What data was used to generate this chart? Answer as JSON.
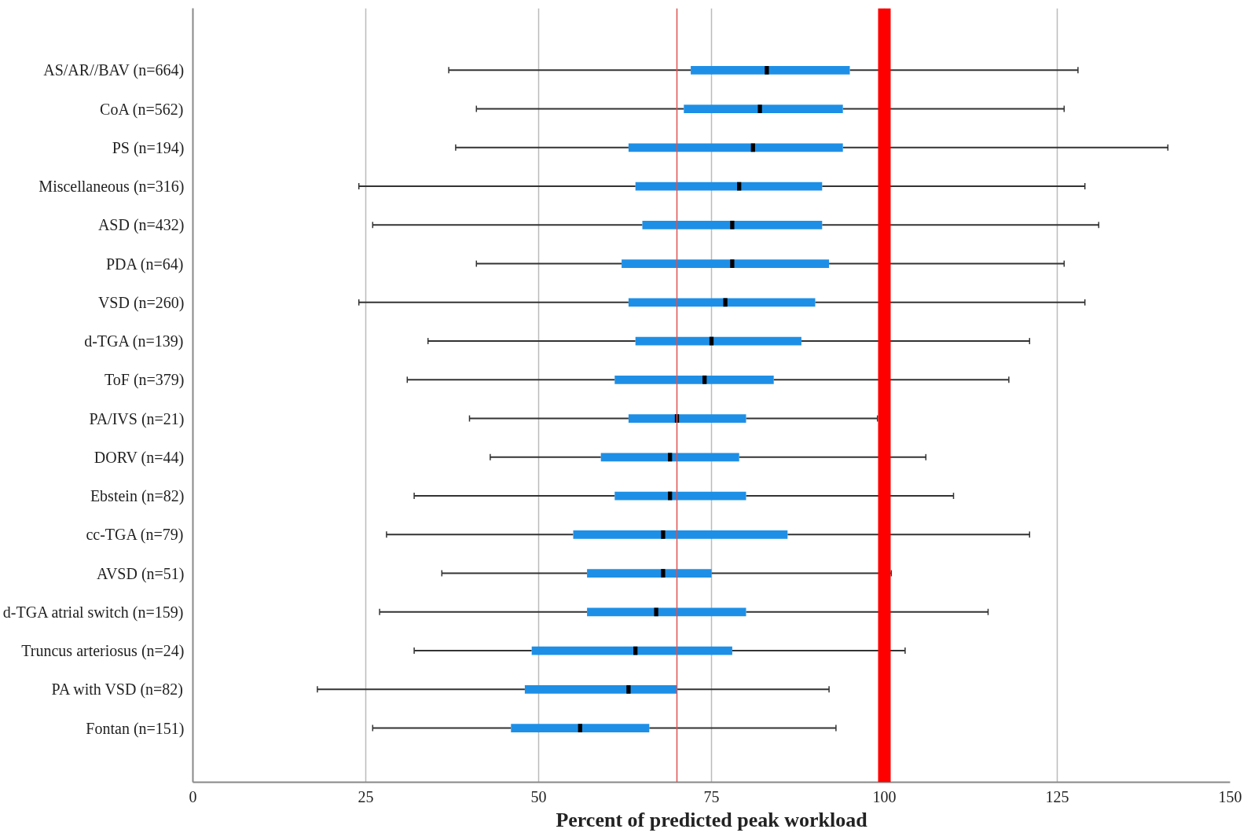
{
  "chart_data": {
    "type": "box",
    "orientation": "horizontal",
    "xlabel": "Percent of predicted peak workload",
    "categories": [
      "AS/AR//BAV (n=664)",
      "CoA (n=562)",
      "PS (n=194)",
      "Miscellaneous (n=316)",
      "ASD (n=432)",
      "PDA (n=64)",
      "VSD (n=260)",
      "d-TGA (n=139)",
      "ToF (n=379)",
      "PA/IVS (n=21)",
      "DORV (n=44)",
      "Ebstein (n=82)",
      "cc-TGA (n=79)",
      "AVSD (n=51)",
      "d-TGA atrial switch (n=159)",
      "Truncus arteriosus (n=24)",
      "PA with VSD (n=82)",
      "Fontan (n=151)"
    ],
    "series": [
      {
        "color": "#1e8fe6",
        "boxes": [
          {
            "low": 37,
            "q1": 72,
            "median": 83,
            "q3": 95,
            "high": 128
          },
          {
            "low": 41,
            "q1": 71,
            "median": 82,
            "q3": 94,
            "high": 126
          },
          {
            "low": 38,
            "q1": 63,
            "median": 81,
            "q3": 94,
            "high": 141
          },
          {
            "low": 24,
            "q1": 64,
            "median": 79,
            "q3": 91,
            "high": 129
          },
          {
            "low": 26,
            "q1": 65,
            "median": 78,
            "q3": 91,
            "high": 131
          },
          {
            "low": 41,
            "q1": 62,
            "median": 78,
            "q3": 92,
            "high": 126
          },
          {
            "low": 24,
            "q1": 63,
            "median": 77,
            "q3": 90,
            "high": 129
          },
          {
            "low": 34,
            "q1": 64,
            "median": 75,
            "q3": 88,
            "high": 121
          },
          {
            "low": 31,
            "q1": 61,
            "median": 74,
            "q3": 84,
            "high": 118
          },
          {
            "low": 40,
            "q1": 63,
            "median": 70,
            "q3": 80,
            "high": 99
          },
          {
            "low": 43,
            "q1": 59,
            "median": 69,
            "q3": 79,
            "high": 106
          },
          {
            "low": 32,
            "q1": 61,
            "median": 69,
            "q3": 80,
            "high": 110
          },
          {
            "low": 28,
            "q1": 55,
            "median": 68,
            "q3": 86,
            "high": 121
          },
          {
            "low": 36,
            "q1": 57,
            "median": 68,
            "q3": 75,
            "high": 101
          },
          {
            "low": 27,
            "q1": 57,
            "median": 67,
            "q3": 80,
            "high": 115
          },
          {
            "low": 32,
            "q1": 49,
            "median": 64,
            "q3": 78,
            "high": 103
          },
          {
            "low": 18,
            "q1": 48,
            "median": 63,
            "q3": 70,
            "high": 92
          },
          {
            "low": 26,
            "q1": 46,
            "median": 56,
            "q3": 66,
            "high": 93
          }
        ]
      }
    ],
    "xlim": [
      0,
      150
    ],
    "xticks": [
      0,
      25,
      50,
      75,
      100,
      125,
      150
    ],
    "grid": "x",
    "ref_lines": [
      {
        "axis": "x",
        "value": 70,
        "color": "#e05050"
      },
      {
        "axis": "x",
        "value": 100,
        "color": "#ff0000"
      }
    ]
  }
}
